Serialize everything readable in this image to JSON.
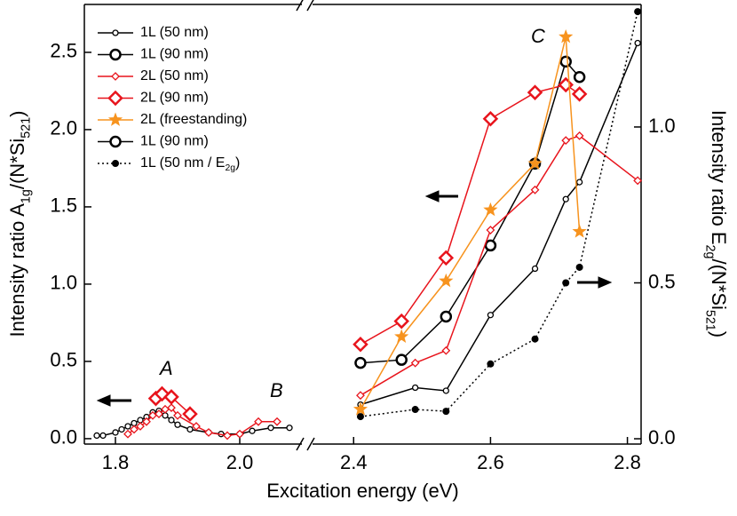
{
  "chart_data": {
    "type": "line",
    "x_label": "Excitation energy (eV)",
    "y_label": [
      "Intensity ratio  A",
      "1g",
      "/(N*Si",
      "521",
      ")"
    ],
    "y2_label": [
      "Intensity ratio  E",
      "2g",
      "/(N*Si",
      "521",
      ")"
    ],
    "x_segments": [
      {
        "xlim": [
          1.75,
          2.1
        ],
        "xticks": [
          1.8,
          {
            "value": 2,
            "label": "2.0"
          }
        ]
      },
      {
        "xlim": [
          2.34,
          2.82
        ],
        "xticks": [
          2.4,
          2.6,
          2.8
        ]
      }
    ],
    "ylim": [
      -0.035,
      2.81
    ],
    "yticks": [
      {
        "value": 0,
        "label": "0.0"
      },
      0.5,
      {
        "value": 1,
        "label": "1.0"
      },
      1.5,
      {
        "value": 2,
        "label": "2.0"
      },
      2.5
    ],
    "y2lim": [
      -0.017,
      1.393
    ],
    "y2ticks": [
      {
        "value": 0,
        "label": "0.0"
      },
      0.5,
      {
        "value": 1,
        "label": "1.0"
      }
    ],
    "annotations": [
      "A",
      "B",
      "C"
    ],
    "series": [
      {
        "name": [
          "1L (50 nm)"
        ],
        "color": "#000000",
        "marker": "circle-small",
        "line_width": 1.5,
        "dash": "solid",
        "x": [
          1.77,
          1.78,
          1.8,
          1.81,
          1.82,
          1.83,
          1.84,
          1.85,
          1.86,
          1.87,
          1.88,
          1.89,
          1.9,
          1.92,
          1.95,
          1.97,
          2.0,
          2.02,
          2.05,
          2.08,
          2.41,
          2.49,
          2.535,
          2.6,
          2.665,
          2.71,
          2.73,
          2.815
        ],
        "values": [
          0.02,
          0.02,
          0.04,
          0.06,
          0.08,
          0.1,
          0.12,
          0.14,
          0.17,
          0.18,
          0.15,
          0.12,
          0.09,
          0.06,
          0.04,
          0.03,
          0.03,
          0.05,
          0.07,
          0.07,
          0.22,
          0.33,
          0.31,
          0.8,
          1.1,
          1.55,
          1.66,
          2.56
        ]
      },
      {
        "name": [
          "1L (90 nm)"
        ],
        "color": "#000000",
        "marker": "circle-large",
        "line_width": 1.5,
        "dash": "solid",
        "x": [
          2.41,
          2.47,
          2.535,
          2.6,
          2.665,
          2.71,
          2.73
        ],
        "values": [
          0.49,
          0.51,
          0.79,
          1.25,
          1.78,
          2.44,
          2.34
        ]
      },
      {
        "name": [
          "2L (50 nm)"
        ],
        "color": "#e8141c",
        "marker": "diamond-small",
        "line_width": 1.5,
        "dash": "solid",
        "x": [
          1.82,
          1.83,
          1.84,
          1.85,
          1.86,
          1.87,
          1.88,
          1.89,
          1.9,
          1.93,
          1.95,
          1.98,
          2.0,
          2.03,
          2.06,
          2.41,
          2.49,
          2.535,
          2.6,
          2.665,
          2.71,
          2.73,
          2.815
        ],
        "values": [
          0.03,
          0.06,
          0.08,
          0.11,
          0.15,
          0.16,
          0.19,
          0.2,
          0.15,
          0.08,
          0.04,
          0.02,
          0.03,
          0.11,
          0.11,
          0.28,
          0.49,
          0.57,
          1.35,
          1.61,
          1.93,
          1.96,
          1.67
        ]
      },
      {
        "name": [
          "2L (90 nm)"
        ],
        "color": "#e8141c",
        "marker": "diamond-large",
        "line_width": 1.5,
        "dash": "solid",
        "x": [
          1.865,
          1.875,
          1.89,
          1.92,
          2.41,
          2.47,
          2.535,
          2.6,
          2.665,
          2.71,
          2.73
        ],
        "values": [
          0.26,
          0.29,
          0.27,
          0.16,
          0.61,
          0.76,
          1.17,
          2.07,
          2.24,
          2.29,
          2.23
        ]
      },
      {
        "name": [
          "2L (freestanding)"
        ],
        "color": "#f7931e",
        "marker": "star",
        "line_width": 1.5,
        "dash": "solid",
        "x": [
          2.41,
          2.47,
          2.535,
          2.6,
          2.665,
          2.71,
          2.73
        ],
        "values": [
          0.19,
          0.66,
          1.02,
          1.48,
          1.78,
          2.6,
          1.34
        ]
      },
      {
        "name": [
          "1L (90 nm)"
        ],
        "color": "#000000",
        "marker": "circle-large",
        "line_width": 1.5,
        "dash": "solid",
        "x": [],
        "values": []
      },
      {
        "name": [
          "1L (50 nm / E",
          "2g",
          ")"
        ],
        "color": "#000000",
        "marker": "dot",
        "line_width": 1.5,
        "dash": "dotted",
        "axis": "y2",
        "x": [
          2.41,
          2.49,
          2.535,
          2.6,
          2.665,
          2.71,
          2.73,
          2.815
        ],
        "values": [
          0.071,
          0.094,
          0.088,
          0.24,
          0.32,
          0.5,
          0.55,
          1.37
        ]
      }
    ]
  }
}
